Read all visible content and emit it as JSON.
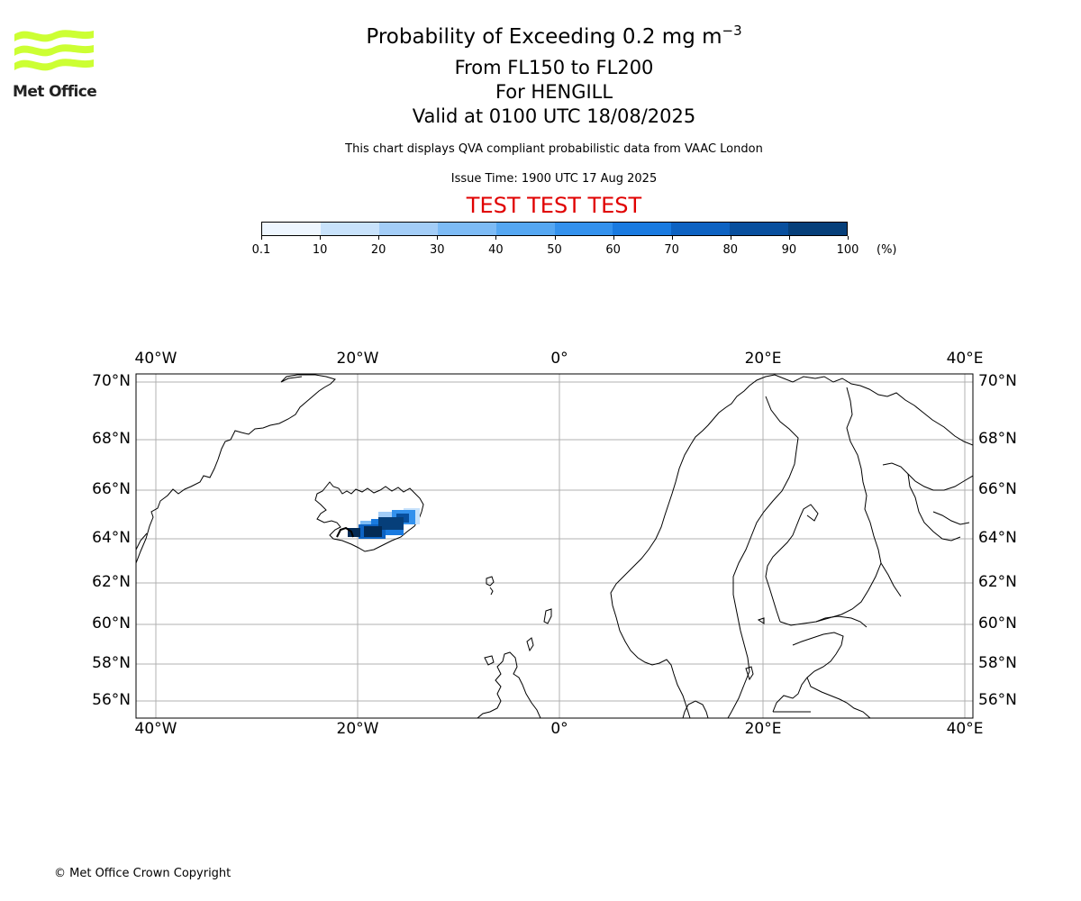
{
  "header": {
    "title_prefix": "Probability of Exceeding 0.2 mg m",
    "title_exponent": "−3",
    "flight_levels": "From FL150 to FL200",
    "volcano": "For HENGILL",
    "valid_time": "Valid at 0100 UTC 18/08/2025",
    "description": "This chart displays QVA compliant probabilistic data from VAAC London",
    "issue_time": "Issue Time: 1900 UTC 17 Aug 2025",
    "test_banner": "TEST TEST TEST"
  },
  "logo": {
    "text": "Met Office",
    "wave_color": "#ccff33"
  },
  "colorbar": {
    "ticks": [
      "0.1",
      "10",
      "20",
      "30",
      "40",
      "50",
      "60",
      "70",
      "80",
      "90",
      "100"
    ],
    "unit": "(%)",
    "colors": [
      "#eef6ff",
      "#c8e2fb",
      "#a3cdf7",
      "#7dbbf5",
      "#55a7f2",
      "#3391ed",
      "#197ae0",
      "#0d62c2",
      "#084f9e",
      "#063f7a",
      "#032a55"
    ]
  },
  "map": {
    "lon_ticks": [
      "40°W",
      "20°W",
      "0°",
      "20°E",
      "40°E"
    ],
    "lat_ticks": [
      "70°N",
      "68°N",
      "66°N",
      "64°N",
      "62°N",
      "60°N",
      "58°N",
      "56°N"
    ],
    "grid": true
  },
  "footer": {
    "copyright": "© Met Office Crown Copyright"
  }
}
